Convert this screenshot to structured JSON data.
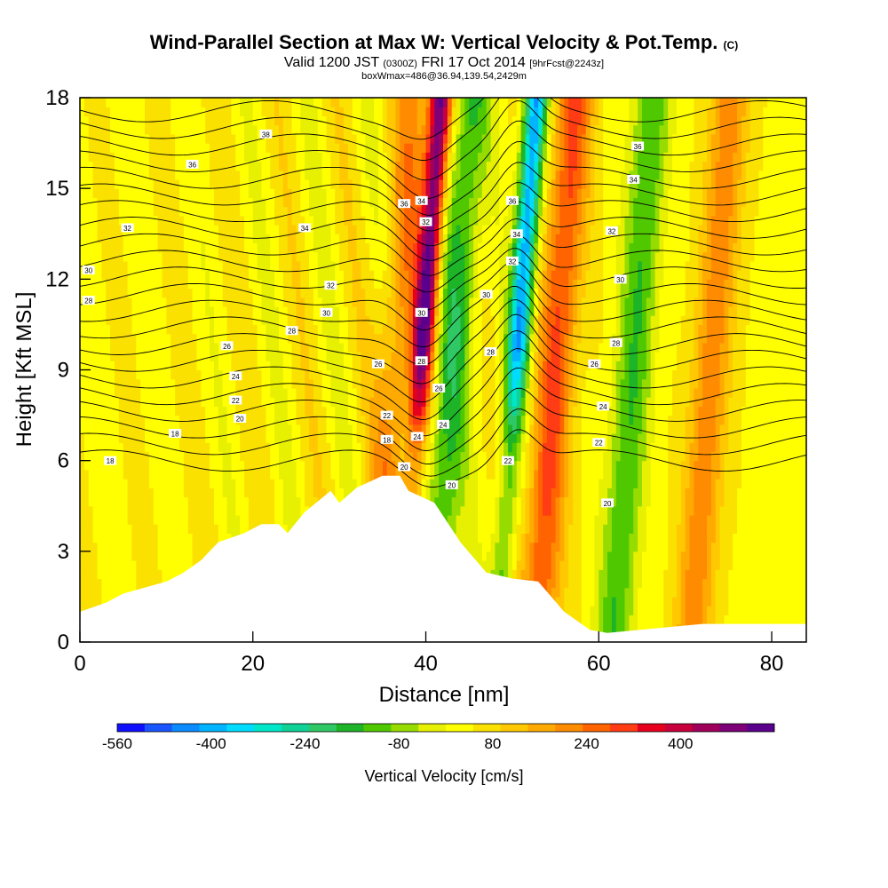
{
  "titles": {
    "main": "Wind-Parallel Section at Max W: Vertical Velocity & Pot.Temp.",
    "main_tag": "(C)",
    "valid_a": "Valid 1200 JST",
    "valid_b": "(0300Z)",
    "valid_c": "FRI 17 Oct 2014",
    "valid_d": "[9hrFcst@2243z]",
    "box": "boxWmax=486@36.94,139.54,2429m"
  },
  "chart_data": {
    "type": "heatmap",
    "xlabel": "Distance [nm]",
    "ylabel": "Height [Kft MSL]",
    "xlim": [
      0,
      84
    ],
    "ylim": [
      0,
      18
    ],
    "x_ticks": [
      "0",
      "20",
      "40",
      "60",
      "80"
    ],
    "y_ticks": [
      "0",
      "3",
      "6",
      "9",
      "12",
      "15",
      "18"
    ],
    "colorbar": {
      "label": "Vertical Velocity [cm/s]",
      "tick_labels": [
        "-560",
        "-400",
        "-240",
        "-80",
        "80",
        "240",
        "400"
      ],
      "tick_values": [
        -560,
        -400,
        -240,
        -80,
        80,
        240,
        400
      ],
      "range": [
        -560,
        560
      ],
      "colors": [
        "#1010ff",
        "#1a56ff",
        "#0a8cff",
        "#00b4ff",
        "#00dcff",
        "#00e6c8",
        "#10d296",
        "#30c864",
        "#1eb428",
        "#50c800",
        "#96dc00",
        "#e6f000",
        "#ffff00",
        "#fae100",
        "#ffc800",
        "#ffaa00",
        "#ff8c00",
        "#ff6400",
        "#ff3c14",
        "#e6001e",
        "#c8003c",
        "#a0005a",
        "#7d0078",
        "#5a008c"
      ]
    },
    "vertical_velocity_features": [
      {
        "x": 39.5,
        "peak": 480,
        "sign": "updraft"
      },
      {
        "x": 50.5,
        "peak": -460,
        "sign": "downdraft"
      },
      {
        "x": 43.0,
        "peak": -200,
        "sign": "downdraft"
      },
      {
        "x": 36.5,
        "peak": 160,
        "sign": "updraft"
      },
      {
        "x": 55.0,
        "peak": 250,
        "sign": "updraft"
      },
      {
        "x": 64.0,
        "peak": -180,
        "sign": "downdraft"
      },
      {
        "x": 73.0,
        "peak": 180,
        "sign": "updraft"
      }
    ],
    "terrain_kft": {
      "x": [
        0,
        3,
        5,
        10,
        12,
        14,
        16,
        19,
        21,
        23,
        24,
        26,
        29,
        30,
        32,
        35,
        37,
        38,
        41,
        44,
        47,
        50,
        53,
        56,
        59,
        61,
        72,
        84
      ],
      "y": [
        1.0,
        1.3,
        1.6,
        2.0,
        2.3,
        2.7,
        3.3,
        3.6,
        3.9,
        3.9,
        3.6,
        4.3,
        5.0,
        4.6,
        5.1,
        5.5,
        5.5,
        5.0,
        4.6,
        3.3,
        2.3,
        2.1,
        2.0,
        1.0,
        0.4,
        0.3,
        0.6,
        0.6
      ]
    },
    "contour_labels": [
      {
        "x": 21.5,
        "y": 16.8,
        "text": "38"
      },
      {
        "x": 13.0,
        "y": 15.8,
        "text": "36"
      },
      {
        "x": 5.5,
        "y": 13.7,
        "text": "32"
      },
      {
        "x": 26.0,
        "y": 13.7,
        "text": "34"
      },
      {
        "x": 1.0,
        "y": 12.3,
        "text": "30"
      },
      {
        "x": 1.0,
        "y": 11.3,
        "text": "28"
      },
      {
        "x": 29.0,
        "y": 11.8,
        "text": "32"
      },
      {
        "x": 28.5,
        "y": 10.9,
        "text": "30"
      },
      {
        "x": 24.5,
        "y": 10.3,
        "text": "28"
      },
      {
        "x": 17.0,
        "y": 9.8,
        "text": "26"
      },
      {
        "x": 18.0,
        "y": 8.8,
        "text": "24"
      },
      {
        "x": 18.0,
        "y": 8.0,
        "text": "22"
      },
      {
        "x": 18.5,
        "y": 7.4,
        "text": "20"
      },
      {
        "x": 11.0,
        "y": 6.9,
        "text": "18"
      },
      {
        "x": 3.5,
        "y": 6.0,
        "text": "18"
      },
      {
        "x": 37.5,
        "y": 14.5,
        "text": "36"
      },
      {
        "x": 39.5,
        "y": 14.6,
        "text": "34"
      },
      {
        "x": 40.0,
        "y": 13.9,
        "text": "32"
      },
      {
        "x": 39.5,
        "y": 10.9,
        "text": "30"
      },
      {
        "x": 39.5,
        "y": 9.3,
        "text": "28"
      },
      {
        "x": 34.5,
        "y": 9.2,
        "text": "26"
      },
      {
        "x": 41.5,
        "y": 8.4,
        "text": "26"
      },
      {
        "x": 35.5,
        "y": 7.5,
        "text": "22"
      },
      {
        "x": 42.0,
        "y": 7.2,
        "text": "24"
      },
      {
        "x": 39.0,
        "y": 6.8,
        "text": "24"
      },
      {
        "x": 35.5,
        "y": 6.7,
        "text": "18"
      },
      {
        "x": 37.5,
        "y": 5.8,
        "text": "20"
      },
      {
        "x": 43.0,
        "y": 5.2,
        "text": "20"
      },
      {
        "x": 50.0,
        "y": 14.6,
        "text": "36"
      },
      {
        "x": 50.5,
        "y": 13.5,
        "text": "34"
      },
      {
        "x": 50.0,
        "y": 12.6,
        "text": "32"
      },
      {
        "x": 47.0,
        "y": 11.5,
        "text": "30"
      },
      {
        "x": 47.5,
        "y": 9.6,
        "text": "28"
      },
      {
        "x": 49.5,
        "y": 6.0,
        "text": "22"
      },
      {
        "x": 64.5,
        "y": 16.4,
        "text": "36"
      },
      {
        "x": 64.0,
        "y": 15.3,
        "text": "34"
      },
      {
        "x": 61.5,
        "y": 13.6,
        "text": "32"
      },
      {
        "x": 62.5,
        "y": 12.0,
        "text": "30"
      },
      {
        "x": 62.0,
        "y": 9.9,
        "text": "28"
      },
      {
        "x": 59.5,
        "y": 9.2,
        "text": "26"
      },
      {
        "x": 60.5,
        "y": 7.8,
        "text": "24"
      },
      {
        "x": 60.0,
        "y": 6.6,
        "text": "22"
      },
      {
        "x": 61.0,
        "y": 4.6,
        "text": "20"
      }
    ]
  }
}
